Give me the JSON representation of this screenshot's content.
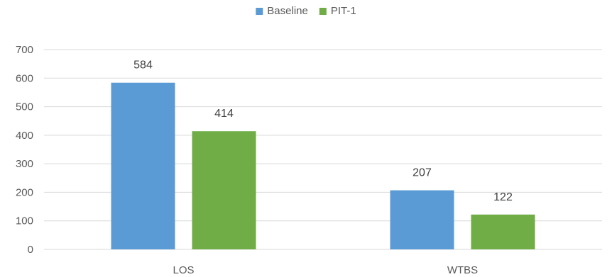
{
  "chart_data": {
    "type": "bar",
    "categories": [
      "LOS",
      "WTBS"
    ],
    "series": [
      {
        "name": "Baseline",
        "values": [
          584,
          207
        ],
        "color": "#5b9bd5"
      },
      {
        "name": "PIT-1",
        "values": [
          414,
          122
        ],
        "color": "#70ad47"
      }
    ],
    "ylim": [
      0,
      700
    ],
    "yticks": [
      0,
      100,
      200,
      300,
      400,
      500,
      600,
      700
    ],
    "grid": true,
    "legend": "top-center",
    "data_labels": true
  }
}
